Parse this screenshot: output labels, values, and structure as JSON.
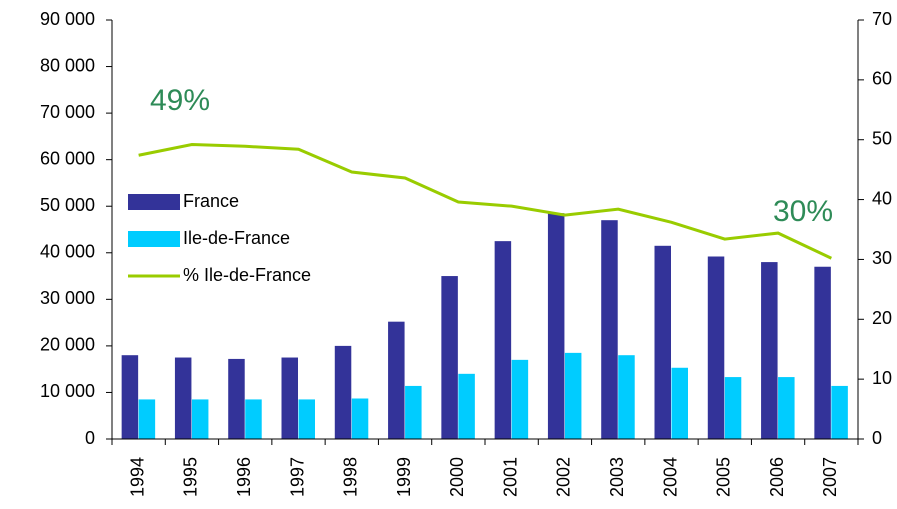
{
  "chart_data": {
    "type": "bar",
    "categories": [
      "1994",
      "1995",
      "1996",
      "1997",
      "1998",
      "1999",
      "2000",
      "2001",
      "2002",
      "2003",
      "2004",
      "2005",
      "2006",
      "2007"
    ],
    "series": [
      {
        "name": "France",
        "color": "#333399",
        "values": [
          18000,
          17500,
          17200,
          17500,
          20000,
          25200,
          35000,
          42500,
          48500,
          47000,
          41500,
          39200,
          38000,
          37000
        ]
      },
      {
        "name": "Ile-de-France",
        "color": "#00ccff",
        "values": [
          8500,
          8500,
          8500,
          8500,
          8700,
          11400,
          14000,
          17000,
          18500,
          18000,
          15300,
          13300,
          13300,
          11400
        ]
      },
      {
        "name": "% Ile-de-France",
        "type": "line",
        "axis": "y2",
        "color": "#99cc00",
        "values": [
          47.4,
          49.2,
          48.9,
          48.4,
          44.6,
          43.6,
          39.6,
          38.9,
          37.4,
          38.4,
          36.2,
          33.4,
          34.4,
          30.2
        ]
      }
    ],
    "ylim": [
      0,
      90000
    ],
    "yticks": [
      0,
      {
        "value": 10000,
        "label": "10 000"
      },
      {
        "value": 20000,
        "label": "20 000"
      },
      {
        "value": 30000,
        "label": "30 000"
      },
      {
        "value": 40000,
        "label": "40 000"
      },
      {
        "value": 50000,
        "label": "50 000"
      },
      {
        "value": 60000,
        "label": "60 000"
      },
      {
        "value": 70000,
        "label": "70 000"
      },
      {
        "value": 80000,
        "label": "80 000"
      },
      {
        "value": 90000,
        "label": "90 000"
      }
    ],
    "y2lim": [
      0,
      70
    ],
    "y2ticks": [
      0,
      10,
      20,
      30,
      40,
      50,
      60,
      70
    ],
    "annotations": [
      "49%",
      "30%"
    ],
    "grid": false
  }
}
